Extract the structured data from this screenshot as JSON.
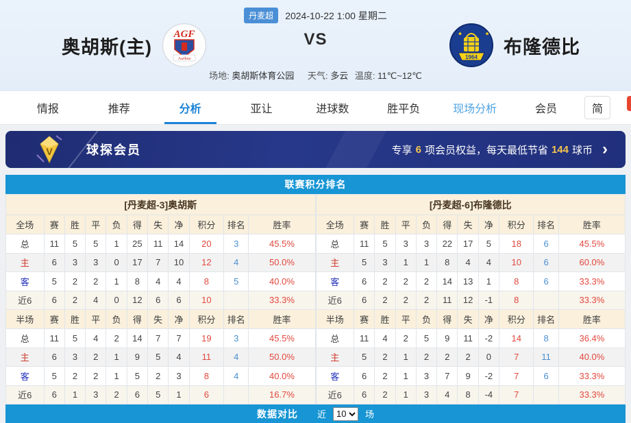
{
  "header": {
    "league_badge": "丹麦超",
    "match_time": "2024-10-22 1:00 星期二",
    "home_team": "奥胡斯(主)",
    "away_team": "布隆德比",
    "vs": "VS",
    "venue_label": "场地:",
    "venue": "奥胡斯体育公园",
    "weather_label": "天气:",
    "weather": "多云",
    "temp_label": "温度:",
    "temperature": "11℃~12℃",
    "home_logo_text": "AGF",
    "home_logo_banner": "Aarhus",
    "away_logo_year": "1964"
  },
  "nav": {
    "items": [
      {
        "label": "情报",
        "state": "normal"
      },
      {
        "label": "推荐",
        "state": "normal"
      },
      {
        "label": "分析",
        "state": "active"
      },
      {
        "label": "亚让",
        "state": "normal"
      },
      {
        "label": "进球数",
        "state": "normal"
      },
      {
        "label": "胜平负",
        "state": "normal"
      },
      {
        "label": "现场分析",
        "state": "highlight"
      },
      {
        "label": "会员",
        "state": "normal"
      }
    ],
    "lang_button": "简"
  },
  "member_banner": {
    "title": "球探会员",
    "promo_prefix": "专享",
    "promo_count": "6",
    "promo_mid": "项会员权益，每天最低节省",
    "promo_amount": "144",
    "promo_suffix": "球币",
    "chevron": "›"
  },
  "section": {
    "title": "联赛积分排名"
  },
  "standings": {
    "columns_full": [
      "全场",
      "赛",
      "胜",
      "平",
      "负",
      "得",
      "失",
      "净",
      "积分",
      "排名",
      "胜率"
    ],
    "columns_half": [
      "半场",
      "赛",
      "胜",
      "平",
      "负",
      "得",
      "失",
      "净",
      "积分",
      "排名",
      "胜率"
    ],
    "home": {
      "title": "[丹麦超-3]奥胡斯",
      "full": [
        {
          "label": "总",
          "cells": [
            "11",
            "5",
            "5",
            "1",
            "25",
            "11",
            "14"
          ],
          "points": "20",
          "rank": "3",
          "rate": "45.5%"
        },
        {
          "label": "主",
          "cells": [
            "6",
            "3",
            "3",
            "0",
            "17",
            "7",
            "10"
          ],
          "points": "12",
          "rank": "4",
          "rate": "50.0%"
        },
        {
          "label": "客",
          "cells": [
            "5",
            "2",
            "2",
            "1",
            "8",
            "4",
            "4"
          ],
          "points": "8",
          "rank": "5",
          "rate": "40.0%"
        },
        {
          "label": "近6",
          "cells": [
            "6",
            "2",
            "4",
            "0",
            "12",
            "6",
            "6"
          ],
          "points": "10",
          "rank": "",
          "rate": "33.3%"
        }
      ],
      "half": [
        {
          "label": "总",
          "cells": [
            "11",
            "5",
            "4",
            "2",
            "14",
            "7",
            "7"
          ],
          "points": "19",
          "rank": "3",
          "rate": "45.5%"
        },
        {
          "label": "主",
          "cells": [
            "6",
            "3",
            "2",
            "1",
            "9",
            "5",
            "4"
          ],
          "points": "11",
          "rank": "4",
          "rate": "50.0%"
        },
        {
          "label": "客",
          "cells": [
            "5",
            "2",
            "2",
            "1",
            "5",
            "2",
            "3"
          ],
          "points": "8",
          "rank": "4",
          "rate": "40.0%"
        },
        {
          "label": "近6",
          "cells": [
            "6",
            "1",
            "3",
            "2",
            "6",
            "5",
            "1"
          ],
          "points": "6",
          "rank": "",
          "rate": "16.7%"
        }
      ]
    },
    "away": {
      "title": "[丹麦超-6]布隆德比",
      "full": [
        {
          "label": "总",
          "cells": [
            "11",
            "5",
            "3",
            "3",
            "22",
            "17",
            "5"
          ],
          "points": "18",
          "rank": "6",
          "rate": "45.5%"
        },
        {
          "label": "主",
          "cells": [
            "5",
            "3",
            "1",
            "1",
            "8",
            "4",
            "4"
          ],
          "points": "10",
          "rank": "6",
          "rate": "60.0%"
        },
        {
          "label": "客",
          "cells": [
            "6",
            "2",
            "2",
            "2",
            "14",
            "13",
            "1"
          ],
          "points": "8",
          "rank": "6",
          "rate": "33.3%"
        },
        {
          "label": "近6",
          "cells": [
            "6",
            "2",
            "2",
            "2",
            "11",
            "12",
            "-1"
          ],
          "points": "8",
          "rank": "",
          "rate": "33.3%"
        }
      ],
      "half": [
        {
          "label": "总",
          "cells": [
            "11",
            "4",
            "2",
            "5",
            "9",
            "11",
            "-2"
          ],
          "points": "14",
          "rank": "8",
          "rate": "36.4%"
        },
        {
          "label": "主",
          "cells": [
            "5",
            "2",
            "1",
            "2",
            "2",
            "2",
            "0"
          ],
          "points": "7",
          "rank": "11",
          "rate": "40.0%"
        },
        {
          "label": "客",
          "cells": [
            "6",
            "2",
            "1",
            "3",
            "7",
            "9",
            "-2"
          ],
          "points": "7",
          "rank": "6",
          "rate": "33.3%"
        },
        {
          "label": "近6",
          "cells": [
            "6",
            "2",
            "1",
            "3",
            "4",
            "8",
            "-4"
          ],
          "points": "7",
          "rank": "",
          "rate": "33.3%"
        }
      ]
    }
  },
  "footer_bar": {
    "title": "数据对比",
    "near_label": "近",
    "selected_rounds": "10",
    "rounds_suffix": "场"
  },
  "colors": {
    "accent_blue": "#1795d4",
    "banner_navy": "#27388a",
    "gold": "#f6c64f",
    "points_red": "#e2483d",
    "rank_blue": "#4a8fd0",
    "header_beige": "#faf0dc"
  }
}
